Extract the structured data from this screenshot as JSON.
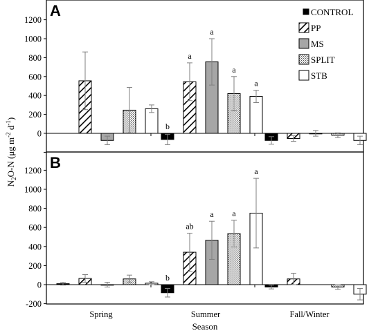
{
  "chart_data": [
    {
      "type": "bar",
      "panel": "A",
      "title": "",
      "ylabel": "N2O-N (μg m-2 d-1)",
      "xlabel": "",
      "categories": [
        "Spring",
        "Summer",
        "Fall/Winter"
      ],
      "ylim": [
        -200,
        1200
      ],
      "yticks": [
        -200,
        0,
        200,
        400,
        600,
        800,
        1000,
        1200
      ],
      "grid": false,
      "legend_position": "top-right",
      "series": [
        {
          "name": "CONTROL",
          "values": [
            null,
            -65,
            -75
          ],
          "errors": [
            null,
            55,
            40
          ],
          "labels": [
            "",
            "b",
            ""
          ]
        },
        {
          "name": "PP",
          "values": [
            555,
            545,
            -55
          ],
          "errors": [
            305,
            200,
            30
          ],
          "labels": [
            "",
            "a",
            ""
          ]
        },
        {
          "name": "MS",
          "values": [
            -75,
            755,
            0
          ],
          "errors": [
            45,
            245,
            30
          ],
          "labels": [
            "",
            "a",
            ""
          ]
        },
        {
          "name": "SPLIT",
          "values": [
            245,
            420,
            -20
          ],
          "errors": [
            240,
            180,
            25
          ],
          "labels": [
            "",
            "a",
            ""
          ]
        },
        {
          "name": "STB",
          "values": [
            260,
            390,
            -75
          ],
          "errors": [
            40,
            65,
            45
          ],
          "labels": [
            "",
            "a",
            ""
          ]
        }
      ]
    },
    {
      "type": "bar",
      "panel": "B",
      "title": "",
      "ylabel": "N2O-N (μg m-2 d-1)",
      "xlabel": "Season",
      "categories": [
        "Spring",
        "Summer",
        "Fall/Winter"
      ],
      "ylim": [
        -200,
        1200
      ],
      "yticks": [
        -200,
        0,
        200,
        400,
        600,
        800,
        1000,
        1200
      ],
      "grid": false,
      "series": [
        {
          "name": "CONTROL",
          "values": [
            10,
            -85,
            -25
          ],
          "errors": [
            15,
            45,
            20
          ],
          "labels": [
            "",
            "b",
            ""
          ]
        },
        {
          "name": "PP",
          "values": [
            65,
            340,
            60
          ],
          "errors": [
            40,
            200,
            60
          ],
          "labels": [
            "",
            "ab",
            ""
          ]
        },
        {
          "name": "MS",
          "values": [
            0,
            465,
            null
          ],
          "errors": [
            25,
            200,
            null
          ],
          "labels": [
            "",
            "a",
            ""
          ]
        },
        {
          "name": "SPLIT",
          "values": [
            60,
            535,
            -25
          ],
          "errors": [
            40,
            140,
            25
          ],
          "labels": [
            "",
            "a",
            ""
          ]
        },
        {
          "name": "STB",
          "values": [
            15,
            750,
            -100
          ],
          "errors": [
            15,
            365,
            60
          ],
          "labels": [
            "",
            "a",
            ""
          ]
        }
      ]
    }
  ],
  "legend": {
    "position": "top-right",
    "items": [
      {
        "name": "CONTROL",
        "fill": "black"
      },
      {
        "name": "PP",
        "fill": "hatch"
      },
      {
        "name": "MS",
        "fill": "gray"
      },
      {
        "name": "SPLIT",
        "fill": "dots"
      },
      {
        "name": "STB",
        "fill": "white"
      }
    ]
  },
  "colors": {
    "control": "#000000",
    "ms": "#a6a6a6",
    "stb": "#ffffff",
    "axis": "#000000",
    "error": "#808080"
  },
  "ylabel_parts": {
    "main": "N",
    "sub": "2",
    "mid": "O-N (μg m",
    "sup1": "-2",
    "mid2": " d",
    "sup2": "-1",
    "end": ")"
  }
}
